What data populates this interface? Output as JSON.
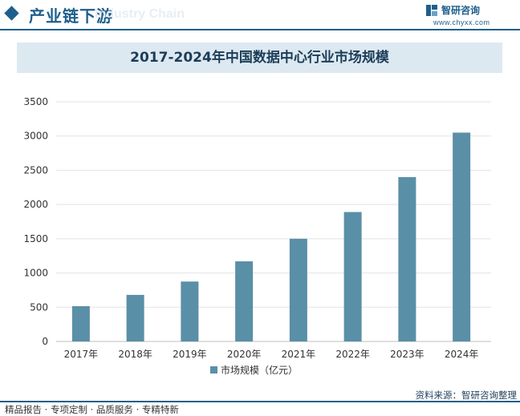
{
  "header": {
    "title": "产业链下游",
    "watermark": "Industry Chain",
    "brand_name": "智研咨询",
    "brand_url": "www.chyxx.com"
  },
  "chart_data": {
    "type": "bar",
    "title": "2017-2024年中国数据中心行业市场规模",
    "categories": [
      "2017年",
      "2018年",
      "2019年",
      "2020年",
      "2021年",
      "2022年",
      "2023年",
      "2024年"
    ],
    "series": [
      {
        "name": "市场规模（亿元）",
        "values": [
          515,
          680,
          875,
          1170,
          1500,
          1890,
          2400,
          3050
        ]
      }
    ],
    "y_ticks": [
      "0",
      "500",
      "1000",
      "1500",
      "2000",
      "2500",
      "3000",
      "3500"
    ],
    "ylim": [
      0,
      3500
    ],
    "grid": true,
    "legend_position": "bottom",
    "bar_color": "#5a8fa8"
  },
  "footer": {
    "left_text": "精品报告 · 专项定制 · 品质服务 · 专精特新",
    "source_text": "资料来源：智研咨询整理"
  }
}
